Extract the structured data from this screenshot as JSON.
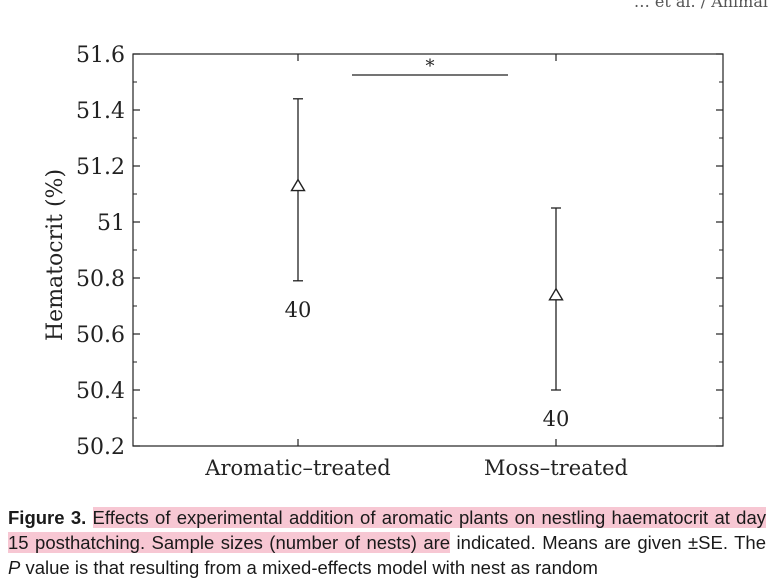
{
  "header_fragment": "… et al. / Animal",
  "chart_data": {
    "type": "errorbar",
    "ylabel": "Hematocrit (%)",
    "ylim": [
      50.2,
      51.6
    ],
    "yticks": [
      "50.2",
      "50.4",
      "50.6",
      "50.8",
      "51",
      "51.2",
      "51.4",
      "51.6"
    ],
    "categories": [
      "Aromatic–treated",
      "Moss–treated"
    ],
    "means": [
      51.13,
      50.74
    ],
    "upper": [
      51.44,
      51.05
    ],
    "lower": [
      50.79,
      50.4
    ],
    "n_labels": [
      "40",
      "40"
    ],
    "significance": "*",
    "marker": "open-triangle"
  },
  "caption": {
    "lead": "Figure 3.",
    "highlighted": "Effects of experimental addition of aromatic plants on nestling haematocrit at day 15 posthatching. Sample sizes (number of nests) are",
    "rest1": " indicated. Means are given ±SE. The ",
    "p": "P",
    "rest2": " value is that resulting from a mixed-effects model with nest as random"
  }
}
